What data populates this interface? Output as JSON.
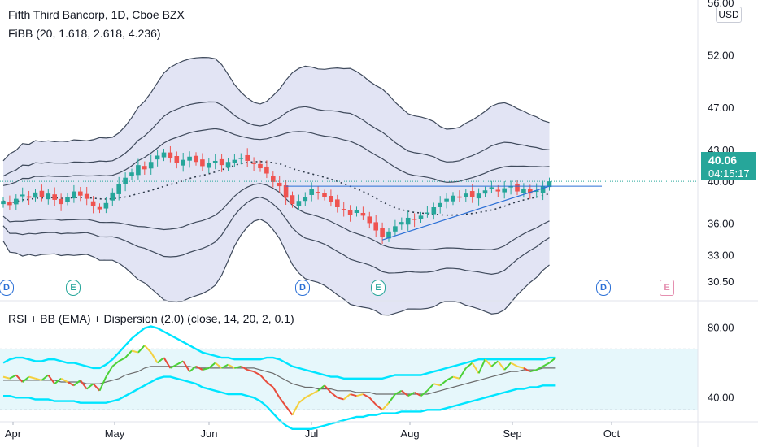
{
  "header": {
    "title": "Fifth Third Bancorp, 1D, Cboe BZX",
    "indicator": "FiBB (20, 1.618, 2.618, 4.236)",
    "rsi_indicator": "RSI + BB (EMA) + Dispersion (2.0) (close, 14, 20, 2, 0.1)"
  },
  "price_axis": {
    "currency": "USD",
    "top_label": "56.00",
    "current_price": "40.06",
    "countdown": "04:15:17"
  },
  "events": [
    {
      "type": "D",
      "month_pos": "early-Apr",
      "kind": "div"
    },
    {
      "type": "E",
      "month_pos": "mid-Apr",
      "kind": "earnings"
    },
    {
      "type": "D",
      "month_pos": "late-Jun",
      "kind": "div"
    },
    {
      "type": "E",
      "month_pos": "mid-Jul",
      "kind": "earnings"
    },
    {
      "type": "D",
      "month_pos": "late-Sep",
      "kind": "div"
    },
    {
      "type": "E",
      "month_pos": "mid-Oct",
      "kind": "future"
    }
  ],
  "colors": {
    "up": "#26a69a",
    "down": "#ef5350",
    "band_fill": "#d8dbf0",
    "band_line": "#3f4a5c",
    "rsi_band": "#00e5ff"
  },
  "chart_data": [
    {
      "type": "candlestick",
      "title": "Fifth Third Bancorp, 1D, Cboe BZX",
      "x_ticks": [
        "Apr",
        "May",
        "Jun",
        "Jul",
        "Aug",
        "Sep",
        "Oct"
      ],
      "y_ticks": [
        52.0,
        47.0,
        43.0,
        40.0,
        36.0,
        33.0,
        30.5
      ],
      "ylim": [
        29.5,
        56.5
      ],
      "last_close": 40.06,
      "closes": [
        38.2,
        37.8,
        38.4,
        38.8,
        38.5,
        39.0,
        38.6,
        38.9,
        38.3,
        37.9,
        38.6,
        39.1,
        38.7,
        38.4,
        37.7,
        37.4,
        38.0,
        39.0,
        39.8,
        40.4,
        40.9,
        41.6,
        41.2,
        41.9,
        42.5,
        42.8,
        42.3,
        41.8,
        42.1,
        42.4,
        41.9,
        41.5,
        41.8,
        42.0,
        41.6,
        41.9,
        42.1,
        42.3,
        42.0,
        41.7,
        41.3,
        40.8,
        40.0,
        39.6,
        38.5,
        37.9,
        38.2,
        38.6,
        39.3,
        39.0,
        38.6,
        38.1,
        37.6,
        37.3,
        36.9,
        37.3,
        36.8,
        36.1,
        35.4,
        34.8,
        35.3,
        35.8,
        36.2,
        36.6,
        36.4,
        36.8,
        37.1,
        37.6,
        38.0,
        38.4,
        38.7,
        38.5,
        38.9,
        38.6,
        38.9,
        39.2,
        39.5,
        39.1,
        39.4,
        39.6,
        39.1,
        39.3,
        38.9,
        39.2,
        39.6,
        40.06
      ],
      "fib_bands": {
        "levels": [
          1.618,
          2.618,
          4.236
        ],
        "upper_last": [
          40.9,
          42.1,
          43.9
        ],
        "lower_last": [
          37.0,
          35.9,
          34.4
        ],
        "basis_last": 39.0
      },
      "trendline": {
        "from": [
          34.5
        ],
        "to": [
          39.6
        ]
      }
    },
    {
      "type": "line",
      "title": "RSI + BB (EMA) + Dispersion (2.0) (close, 14, 20, 2, 0.1)",
      "y_ticks": [
        80.0,
        40.0
      ],
      "ylim": [
        28,
        92
      ],
      "rsi": [
        52,
        51,
        53,
        49,
        52,
        51,
        50,
        53,
        48,
        51,
        49,
        47,
        50,
        45,
        48,
        44,
        52,
        58,
        61,
        63,
        67,
        66,
        70,
        66,
        60,
        63,
        57,
        59,
        61,
        55,
        58,
        56,
        57,
        60,
        57,
        59,
        57,
        58,
        56,
        55,
        53,
        49,
        46,
        40,
        35,
        30,
        37,
        40,
        42,
        44,
        47,
        43,
        40,
        39,
        42,
        41,
        42,
        40,
        36,
        33,
        37,
        42,
        44,
        41,
        43,
        41,
        44,
        48,
        47,
        50,
        52,
        51,
        57,
        60,
        54,
        62,
        58,
        61,
        56,
        60,
        58,
        57,
        55,
        56,
        58,
        60,
        63
      ],
      "rsi_ma": [
        50,
        50,
        50,
        50,
        50,
        50,
        50,
        50,
        50,
        49,
        49,
        49,
        49,
        48,
        48,
        48,
        49,
        50,
        51,
        53,
        54,
        55,
        57,
        58,
        58,
        58,
        58,
        58,
        58,
        58,
        57,
        57,
        57,
        57,
        57,
        57,
        57,
        57,
        57,
        57,
        56,
        55,
        54,
        52,
        50,
        48,
        47,
        46,
        46,
        45,
        45,
        45,
        44,
        44,
        44,
        43,
        43,
        43,
        42,
        42,
        42,
        42,
        42,
        42,
        42,
        42,
        42,
        43,
        44,
        45,
        46,
        47,
        48,
        49,
        50,
        51,
        52,
        53,
        54,
        55,
        55,
        56,
        56,
        56,
        57,
        57,
        57
      ],
      "bb_upper": [
        60,
        62,
        63,
        63,
        62,
        61,
        61,
        62,
        62,
        61,
        60,
        60,
        59,
        58,
        57,
        57,
        59,
        62,
        66,
        70,
        74,
        77,
        80,
        81,
        80,
        78,
        76,
        74,
        72,
        70,
        68,
        66,
        65,
        64,
        63,
        63,
        62,
        62,
        62,
        62,
        62,
        63,
        63,
        62,
        60,
        58,
        57,
        56,
        55,
        54,
        53,
        52,
        52,
        51,
        51,
        51,
        51,
        51,
        51,
        51,
        52,
        53,
        53,
        53,
        53,
        53,
        54,
        55,
        56,
        57,
        58,
        59,
        60,
        61,
        62,
        62,
        62,
        62,
        62,
        62,
        62,
        62,
        62,
        62,
        62,
        63,
        63
      ],
      "bb_lower": [
        41,
        41,
        40,
        40,
        40,
        39,
        39,
        39,
        38,
        38,
        38,
        38,
        37,
        37,
        37,
        37,
        37,
        38,
        39,
        41,
        43,
        45,
        47,
        49,
        51,
        52,
        52,
        51,
        50,
        49,
        48,
        46,
        45,
        44,
        43,
        42,
        42,
        42,
        41,
        40,
        38,
        35,
        31,
        27,
        24,
        22,
        22,
        22,
        22,
        23,
        24,
        25,
        26,
        27,
        28,
        29,
        29,
        30,
        30,
        31,
        31,
        31,
        32,
        32,
        32,
        32,
        33,
        33,
        33,
        34,
        35,
        36,
        37,
        38,
        39,
        40,
        41,
        42,
        43,
        44,
        45,
        45,
        46,
        46,
        47,
        47,
        47
      ]
    }
  ]
}
